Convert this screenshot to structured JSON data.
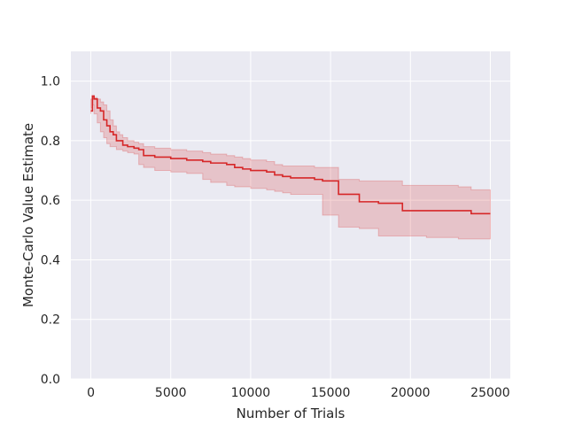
{
  "chart_data": {
    "type": "line",
    "title": "",
    "xlabel": "Number of Trials",
    "ylabel": "Monte-Carlo Value Estimate",
    "xlim": [
      -1250,
      26250
    ],
    "ylim": [
      0.0,
      1.1
    ],
    "xticks": [
      0,
      5000,
      10000,
      15000,
      20000,
      25000
    ],
    "xtick_labels": [
      "0",
      "5000",
      "10000",
      "15000",
      "20000",
      "25000"
    ],
    "yticks": [
      0.0,
      0.2,
      0.4,
      0.6,
      0.8,
      1.0
    ],
    "ytick_labels": [
      "0.0",
      "0.2",
      "0.4",
      "0.6",
      "0.8",
      "1.0"
    ],
    "grid": true,
    "background": "#eaeaf2",
    "series": [
      {
        "color": "#d62728",
        "band_color": "#d62728",
        "step": true,
        "x": [
          0,
          100,
          200,
          400,
          600,
          800,
          1000,
          1200,
          1400,
          1600,
          1800,
          2000,
          2300,
          2700,
          3000,
          3300,
          4000,
          5000,
          6000,
          7000,
          7500,
          8500,
          9000,
          9500,
          10000,
          11000,
          11500,
          12000,
          12500,
          14000,
          14500,
          15500,
          16800,
          18000,
          19500,
          21000,
          23000,
          23800,
          25000
        ],
        "y": [
          0.9,
          0.95,
          0.94,
          0.91,
          0.9,
          0.87,
          0.85,
          0.83,
          0.82,
          0.8,
          0.8,
          0.785,
          0.78,
          0.775,
          0.77,
          0.75,
          0.745,
          0.74,
          0.735,
          0.73,
          0.725,
          0.72,
          0.71,
          0.705,
          0.7,
          0.695,
          0.685,
          0.68,
          0.675,
          0.67,
          0.665,
          0.62,
          0.595,
          0.59,
          0.565,
          0.565,
          0.565,
          0.555,
          0.555
        ],
        "upper": [
          0.91,
          0.95,
          0.945,
          0.94,
          0.93,
          0.92,
          0.9,
          0.87,
          0.85,
          0.83,
          0.82,
          0.81,
          0.8,
          0.795,
          0.79,
          0.78,
          0.775,
          0.77,
          0.765,
          0.76,
          0.755,
          0.75,
          0.745,
          0.74,
          0.735,
          0.73,
          0.72,
          0.715,
          0.715,
          0.71,
          0.71,
          0.67,
          0.665,
          0.665,
          0.65,
          0.65,
          0.645,
          0.635,
          0.63
        ],
        "lower": [
          0.89,
          0.94,
          0.92,
          0.89,
          0.86,
          0.83,
          0.81,
          0.79,
          0.78,
          0.78,
          0.77,
          0.77,
          0.765,
          0.76,
          0.755,
          0.72,
          0.71,
          0.7,
          0.695,
          0.69,
          0.67,
          0.66,
          0.65,
          0.645,
          0.645,
          0.64,
          0.635,
          0.63,
          0.625,
          0.62,
          0.62,
          0.55,
          0.51,
          0.505,
          0.48,
          0.48,
          0.475,
          0.47,
          0.47
        ]
      }
    ]
  }
}
